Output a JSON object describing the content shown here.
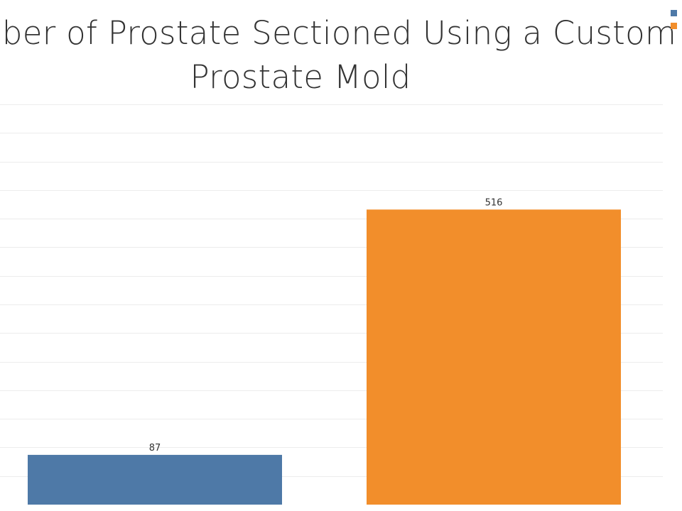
{
  "chart_data": {
    "type": "bar",
    "title_lines": [
      "Number of Prostate Sectioned Using a Custom",
      "Prostate Mold"
    ],
    "categories": [
      "",
      ""
    ],
    "values": [
      87,
      516
    ],
    "data_labels": [
      "87",
      "516"
    ],
    "colors": [
      "#4e79a7",
      "#f28e2b"
    ],
    "ylim": [
      0,
      700
    ],
    "grid": true,
    "legend_position": "top-right",
    "legend_colors": [
      "#4e79a7",
      "#f28e2b"
    ]
  }
}
